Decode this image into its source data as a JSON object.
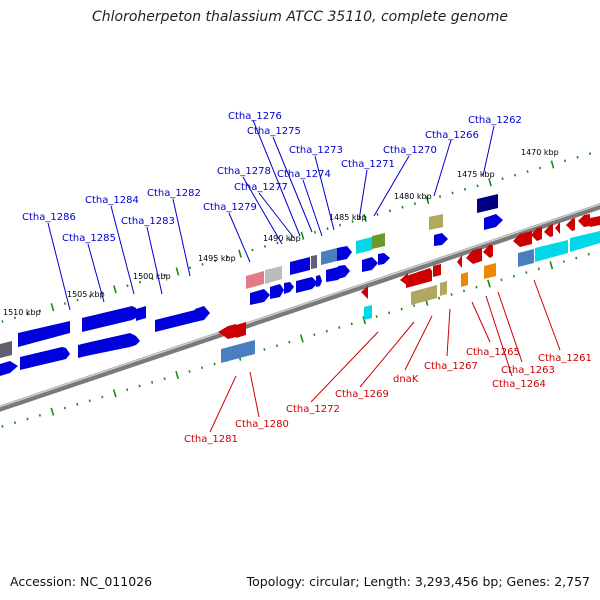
{
  "title": "Chloroherpeton thalassium ATCC 35110, complete genome",
  "footer": {
    "accession": "Accession: NC_011026",
    "summary": "Topology: circular; Length: 3,293,456 bp; Genes: 2,757"
  },
  "scale_labels": [
    "1470 kbp",
    "1475 kbp",
    "1480 kbp",
    "1485 kbp",
    "1490 kbp",
    "1495 kbp",
    "1500 kbp",
    "1505 kbp",
    "1510 kbp"
  ],
  "colors": {
    "forward_label": "#0000cc",
    "reverse_label": "#cc0000",
    "backbone": "#8a8a8a",
    "tick": "#1a8a1a"
  },
  "forward_labels": [
    "Ctha_1276",
    "Ctha_1262",
    "Ctha_1275",
    "Ctha_1266",
    "Ctha_1273",
    "Ctha_1270",
    "Ctha_1271",
    "Ctha_1278",
    "Ctha_1274",
    "Ctha_1277",
    "Ctha_1284",
    "Ctha_1282",
    "Ctha_1279",
    "Ctha_1286",
    "Ctha_1283",
    "Ctha_1285"
  ],
  "reverse_labels": [
    "Ctha_1261",
    "Ctha_1265",
    "Ctha_1263",
    "Ctha_1264",
    "Ctha_1267",
    "dnaK",
    "Ctha_1269",
    "Ctha_1272",
    "Ctha_1280",
    "Ctha_1281"
  ]
}
